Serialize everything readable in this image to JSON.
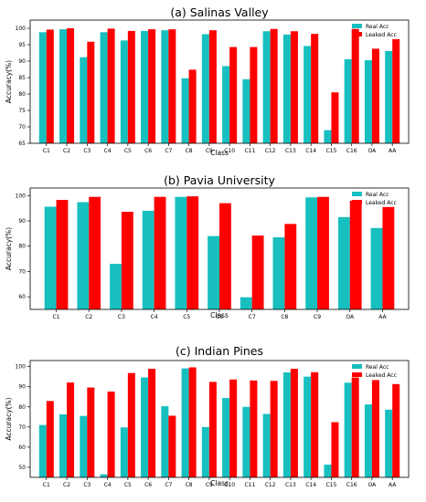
{
  "colors": {
    "real": "#17bfbf",
    "leaked": "#ff0000"
  },
  "chart_data": [
    {
      "type": "bar",
      "title": "(a) Salinas Valley",
      "xlabel": "Class",
      "ylabel": "Accuracy(%)",
      "ylim": [
        65,
        102.5
      ],
      "yticks": [
        65,
        70,
        75,
        80,
        85,
        90,
        95,
        100
      ],
      "legend": "top-right",
      "categories": [
        "C1",
        "C2",
        "C3",
        "C4",
        "C5",
        "C6",
        "C7",
        "C8",
        "C9",
        "C10",
        "C11",
        "C12",
        "C13",
        "C14",
        "C15",
        "C16",
        "OA",
        "AA"
      ],
      "series": [
        {
          "name": "Real Acc",
          "values": [
            98.8,
            99.7,
            91.2,
            98.8,
            96.3,
            99.2,
            99.4,
            84.8,
            98.2,
            88.5,
            84.5,
            99.1,
            98.1,
            94.6,
            69.0,
            90.6,
            90.3,
            93.1
          ]
        },
        {
          "name": "Leaked Acc",
          "values": [
            99.6,
            100.0,
            95.9,
            99.9,
            99.2,
            99.7,
            99.7,
            87.4,
            99.4,
            94.3,
            94.3,
            99.8,
            99.1,
            98.3,
            80.5,
            99.8,
            93.8,
            96.7
          ]
        }
      ]
    },
    {
      "type": "bar",
      "title": "(b) Pavia University",
      "xlabel": "Class",
      "ylabel": "Accuracy(%)",
      "ylim": [
        55,
        103
      ],
      "yticks": [
        60,
        70,
        80,
        90,
        100
      ],
      "legend": "top-right",
      "categories": [
        "C1",
        "C2",
        "C3",
        "C4",
        "C5",
        "C6",
        "C7",
        "C8",
        "C9",
        "OA",
        "AA"
      ],
      "series": [
        {
          "name": "Real Acc",
          "values": [
            95.6,
            97.4,
            73.0,
            94.0,
            99.5,
            84.0,
            59.8,
            83.5,
            99.3,
            91.5,
            87.2
          ]
        },
        {
          "name": "Leaked Acc",
          "values": [
            98.3,
            99.5,
            93.6,
            99.5,
            99.7,
            97.0,
            84.2,
            88.8,
            99.5,
            98.0,
            95.5
          ]
        }
      ]
    },
    {
      "type": "bar",
      "title": "(c) Indian Pines",
      "xlabel": "Class",
      "ylabel": "Accuracy(%)",
      "ylim": [
        45,
        103
      ],
      "yticks": [
        50,
        60,
        70,
        80,
        90,
        100
      ],
      "legend": "top-right",
      "categories": [
        "C1",
        "C2",
        "C3",
        "C4",
        "C5",
        "C6",
        "C7",
        "C8",
        "C9",
        "C10",
        "C11",
        "C12",
        "C13",
        "C14",
        "C15",
        "C16",
        "OA",
        "AA"
      ],
      "series": [
        {
          "name": "Real Acc",
          "values": [
            71.0,
            76.3,
            75.5,
            46.5,
            69.8,
            94.6,
            80.3,
            99.1,
            70.0,
            84.4,
            80.0,
            76.5,
            97.1,
            95.0,
            51.3,
            92.0,
            81.2,
            78.6
          ]
        },
        {
          "name": "Leaked Acc",
          "values": [
            82.9,
            92.1,
            89.6,
            87.6,
            96.8,
            98.9,
            75.6,
            99.6,
            92.4,
            93.6,
            93.1,
            92.9,
            98.9,
            97.2,
            72.4,
            94.6,
            93.3,
            91.3
          ]
        }
      ]
    }
  ]
}
